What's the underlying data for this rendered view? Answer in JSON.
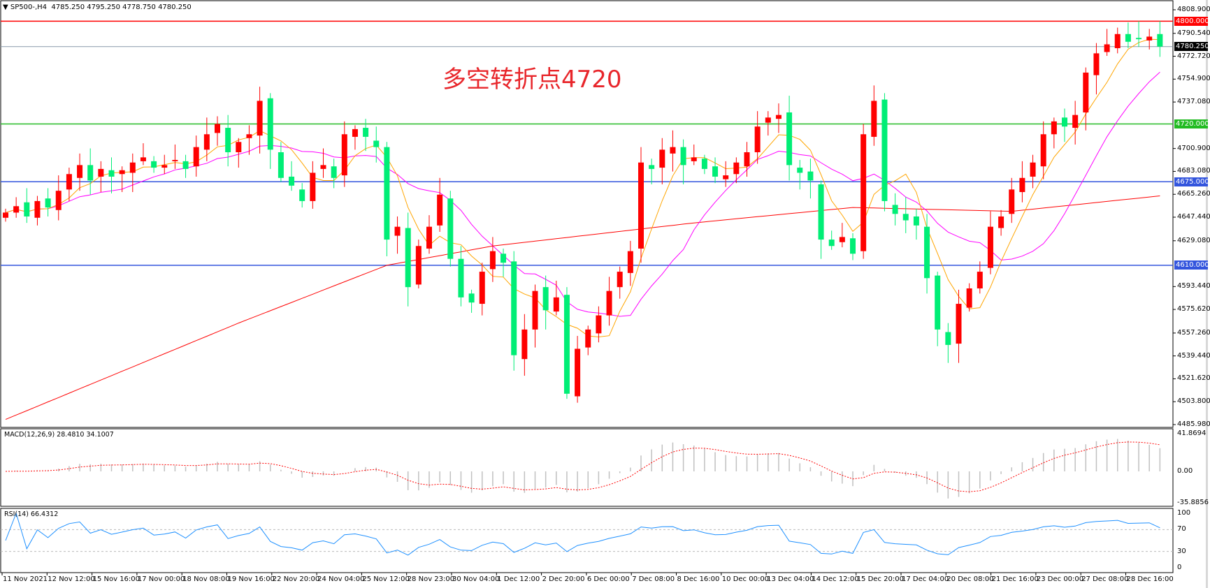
{
  "header": {
    "symbol": "SP500-,H4",
    "ohlc": "4785.250 4795.250 4778.750 4780.250"
  },
  "annotation": "多空转折点4720",
  "colors": {
    "up": "#ff0000",
    "down": "#00ee76",
    "ma_fast": "#ffa500",
    "ma_mid": "#ff00ff",
    "ma_long": "#ff0000",
    "level_4800": "#ff0000",
    "level_4720": "#22bb22",
    "level_blue": "#3355dd",
    "macd_hist": "#c0c0c0",
    "macd_signal": "#ff0000",
    "rsi": "#1e90ff"
  },
  "price_axis": [
    "4808.900",
    "4790.540",
    "4772.720",
    "4754.900",
    "4737.080",
    "4700.900",
    "4683.080",
    "4665.260",
    "4647.440",
    "4629.080",
    "4593.440",
    "4575.620",
    "4557.260",
    "4539.440",
    "4521.620",
    "4503.800",
    "4485.980"
  ],
  "levels": [
    {
      "value": 4800,
      "label": "4800.000",
      "color": "#ff0000"
    },
    {
      "value": 4720,
      "label": "4720.000",
      "color": "#22bb22"
    },
    {
      "value": 4675,
      "label": "4675.000",
      "color": "#3355dd"
    },
    {
      "value": 4610,
      "label": "4610.000",
      "color": "#3355dd"
    }
  ],
  "current_price": {
    "value": 4780.25,
    "label": "4780.250"
  },
  "macd": {
    "label": "MACD(12,26,9) 28.4810 34.1007",
    "axis": [
      "41.8694",
      "0.00",
      "-35.8856"
    ],
    "max": 41.8694,
    "min": -35.8856
  },
  "rsi": {
    "label": "RSI(14) 66.4312",
    "axis": [
      "100",
      "70",
      "30",
      "0"
    ]
  },
  "time_axis": [
    "11 Nov 2021",
    "12 Nov 12:00",
    "15 Nov 16:00",
    "17 Nov 00:00",
    "18 Nov 08:00",
    "19 Nov 16:00",
    "22 Nov 20:00",
    "24 Nov 04:00",
    "25 Nov 12:00",
    "28 Nov 23:00",
    "30 Nov 04:00",
    "1 Dec 12:00",
    "2 Dec 20:00",
    "6 Dec 00:00",
    "7 Dec 08:00",
    "8 Dec 16:00",
    "10 Dec 00:00",
    "13 Dec 04:00",
    "14 Dec 12:00",
    "15 Dec 20:00",
    "17 Dec 04:00",
    "20 Dec 08:00",
    "21 Dec 16:00",
    "23 Dec 00:00",
    "27 Dec 08:00",
    "28 Dec 16:00"
  ],
  "chart_data": {
    "type": "candlestick",
    "ylim": [
      4485.98,
      4808.9
    ],
    "closes": [
      4651,
      4656,
      4648,
      4660,
      4655,
      4668,
      4681,
      4688,
      4676,
      4685,
      4679,
      4684,
      4690,
      4694,
      4686,
      4688,
      4692,
      4685,
      4702,
      4712,
      4720,
      4698,
      4706,
      4712,
      4738,
      4700,
      4678,
      4672,
      4660,
      4682,
      4688,
      4678,
      4712,
      4716,
      4710,
      4702,
      4630,
      4640,
      4593,
      4625,
      4640,
      4665,
      4615,
      4585,
      4581,
      4605,
      4621,
      4612,
      4540,
      4560,
      4590,
      4575,
      4585,
      4510,
      4545,
      4560,
      4571,
      4590,
      4605,
      4621,
      4690,
      4685,
      4700,
      4702,
      4688,
      4694,
      4685,
      4679,
      4680,
      4690,
      4698,
      4718,
      4725,
      4727,
      4688,
      4682,
      4676,
      4630,
      4625,
      4632,
      4619,
      4712,
      4738,
      4660,
      4650,
      4645,
      4641,
      4600,
      4560,
      4548,
      4580,
      4592,
      4605,
      4640,
      4648,
      4669,
      4678,
      4690,
      4712,
      4722,
      4718,
      4727,
      4760,
      4775,
      4782,
      4790,
      4784,
      4786,
      4788,
      4780.25
    ],
    "ma_long": [
      {
        "i": 0,
        "v": 4490
      },
      {
        "i": 22,
        "v": 4565
      },
      {
        "i": 36,
        "v": 4610
      },
      {
        "i": 46,
        "v": 4625
      },
      {
        "i": 65,
        "v": 4643
      },
      {
        "i": 80,
        "v": 4655
      },
      {
        "i": 95,
        "v": 4652
      },
      {
        "i": 109,
        "v": 4664
      }
    ]
  }
}
